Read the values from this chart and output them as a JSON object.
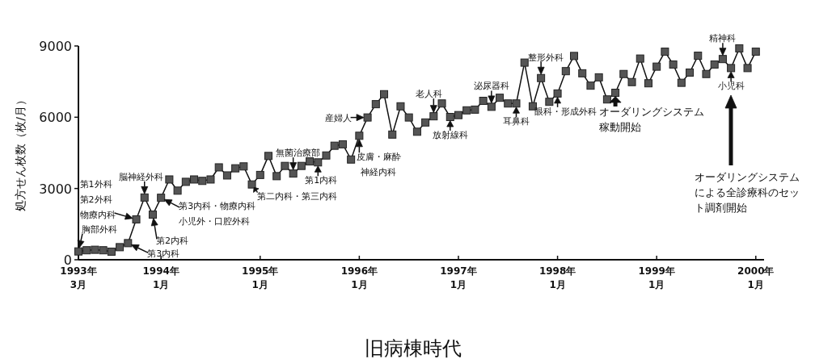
{
  "chart_data": {
    "type": "line",
    "ylabel": "処方せん枚数（枚/月）",
    "marker": "square",
    "x": [
      "1993-03",
      "1993-04",
      "1993-05",
      "1993-06",
      "1993-07",
      "1993-08",
      "1993-09",
      "1993-10",
      "1993-11",
      "1993-12",
      "1994-01",
      "1994-02",
      "1994-03",
      "1994-04",
      "1994-05",
      "1994-06",
      "1994-07",
      "1994-08",
      "1994-09",
      "1994-10",
      "1994-11",
      "1994-12",
      "1995-01",
      "1995-02",
      "1995-03",
      "1995-04",
      "1995-05",
      "1995-06",
      "1995-07",
      "1995-08",
      "1995-09",
      "1995-10",
      "1995-11",
      "1995-12",
      "1996-01",
      "1996-02",
      "1996-03",
      "1996-04",
      "1996-05",
      "1996-06",
      "1996-07",
      "1996-08",
      "1996-09",
      "1996-10",
      "1996-11",
      "1996-12",
      "1997-01",
      "1997-02",
      "1997-03",
      "1997-04",
      "1997-05",
      "1997-06",
      "1997-07",
      "1997-08",
      "1997-09",
      "1997-10",
      "1997-11",
      "1997-12",
      "1998-01",
      "1998-02",
      "1998-03",
      "1998-04",
      "1998-05",
      "1998-06",
      "1998-07",
      "1998-08",
      "1998-09",
      "1998-10",
      "1998-11",
      "1998-12",
      "1999-01",
      "1999-02",
      "1999-03",
      "1999-04",
      "1999-05",
      "1999-06",
      "1999-07",
      "1999-08",
      "1999-09",
      "1999-10",
      "1999-11",
      "1999-12",
      "2000-01"
    ],
    "series": [
      {
        "color": "#555555",
        "values": [
          350,
          400,
          420,
          400,
          340,
          530,
          700,
          1700,
          2620,
          1900,
          2610,
          3380,
          2910,
          3280,
          3380,
          3320,
          3380,
          3890,
          3550,
          3850,
          3930,
          3170,
          3570,
          4370,
          3520,
          3950,
          3630,
          3950,
          4140,
          4100,
          4390,
          4800,
          4860,
          4220,
          5220,
          5990,
          6550,
          6970,
          5270,
          6460,
          5990,
          5390,
          5780,
          6040,
          6580,
          6010,
          6090,
          6290,
          6320,
          6690,
          6440,
          6820,
          6580,
          6580,
          8300,
          6460,
          7650,
          6650,
          7000,
          7940,
          8580,
          7850,
          7330,
          7680,
          6750,
          7030,
          7820,
          7480,
          8470,
          7430,
          8130,
          8760,
          8220,
          7450,
          7880,
          8590,
          7820,
          8220,
          8450,
          8070,
          8900,
          8070,
          8760
        ]
      }
    ],
    "xlim": [
      "1993-03",
      "2000-02"
    ],
    "xticks": [
      {
        "value": "1993-03",
        "label": "1993年\n3月"
      },
      {
        "value": "1994-01",
        "label": "1994年\n1月"
      },
      {
        "value": "1995-01",
        "label": "1995年\n1月"
      },
      {
        "value": "1996-01",
        "label": "1996年\n1月"
      },
      {
        "value": "1997-01",
        "label": "1997年\n1月"
      },
      {
        "value": "1998-01",
        "label": "1998年\n1月"
      },
      {
        "value": "1999-01",
        "label": "1999年\n1月"
      },
      {
        "value": "2000-01",
        "label": "2000年\n1月"
      }
    ],
    "ylim": [
      0,
      9000
    ],
    "yticks": [
      0,
      3000,
      6000,
      9000
    ],
    "annotations": [
      {
        "text": "胸部外科",
        "x": "1993-03",
        "y": 350
      },
      {
        "text": "第1外科第2外科物療内科",
        "x": "1993-10",
        "y": 1700
      },
      {
        "text": "脳神経外科",
        "x": "1993-11",
        "y": 2620
      },
      {
        "text": "第2内科",
        "x": "1993-12",
        "y": 1900
      },
      {
        "text": "第3内科",
        "x": "1993-09",
        "y": 700
      },
      {
        "text": "第3内科・物療内科小児外・口腔外科",
        "x": "1994-01",
        "y": 2610
      },
      {
        "text": "第二内科・第三内科",
        "x": "1994-12",
        "y": 3170
      },
      {
        "text": "無菌治療部",
        "x": "1995-05",
        "y": 3630
      },
      {
        "text": "第1内科",
        "x": "1995-08",
        "y": 4100
      },
      {
        "text": "産婦人",
        "x": "1996-02",
        "y": 5990
      },
      {
        "text": "皮膚・麻酔神経内科",
        "x": "1996-01",
        "y": 5220
      },
      {
        "text": "老人科",
        "x": "1996-10",
        "y": 6040
      },
      {
        "text": "放射線科",
        "x": "1996-12",
        "y": 6010
      },
      {
        "text": "泌尿器科",
        "x": "1997-05",
        "y": 6440
      },
      {
        "text": "耳鼻科",
        "x": "1997-08",
        "y": 6580
      },
      {
        "text": "整形外科",
        "x": "1997-11",
        "y": 7650
      },
      {
        "text": "眼科・形成外科",
        "x": "1998-01",
        "y": 7000
      },
      {
        "text": "オーダリングシステム稼動開始",
        "x": "1998-08",
        "y": 7030
      },
      {
        "text": "精神科",
        "x": "1999-09",
        "y": 8450
      },
      {
        "text": "小児科",
        "x": "1999-10",
        "y": 8070
      },
      "オーダリングシステムによる全診療科のセット調剤開始",
      "旧病棟時代"
    ]
  }
}
